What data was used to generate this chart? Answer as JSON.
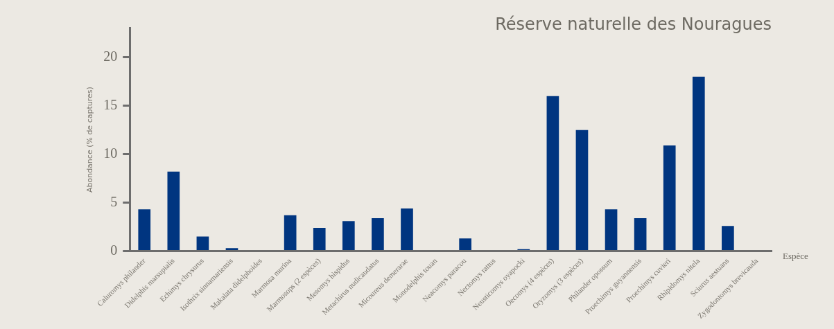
{
  "chart_data": {
    "type": "bar",
    "title": "Réserve naturelle des Nouragues",
    "xlabel": "Espèce",
    "ylabel": "Abondance (% de captures)",
    "categories": [
      "Caluromys philander",
      "Didelphis marsupialis",
      "Echimys chrysurus",
      "Isothrix sinnamariensis",
      "Makalata didelphoides",
      "Marmosa murina",
      "Marmosops (2 espèces)",
      "Mesomys hispidus",
      "Metachirus nudicaudatus",
      "Micoureus demerarae",
      "Monodelphis touan",
      "Neacomys paracou",
      "Nectomys rattus",
      "Neusticomys oyapocki",
      "Oecomys (4 espèces)",
      "Oryzomys (3 espèces)",
      "Philander opossum",
      "Proechimys guyannensis",
      "Proechimys cuvieri",
      "Rhipidomys nitela",
      "Sciurus aestuans",
      "Zygodontomys brevicauda"
    ],
    "values": [
      4.3,
      8.2,
      1.5,
      0.3,
      0,
      3.7,
      2.4,
      3.1,
      3.4,
      4.4,
      0,
      1.3,
      0,
      0.2,
      16,
      12.5,
      4.3,
      3.4,
      10.9,
      18,
      2.6,
      0
    ],
    "color": "#003580",
    "ylim": [
      0,
      23
    ],
    "yticks": [
      0,
      5,
      10,
      15,
      20
    ],
    "grid": false,
    "legend": false
  }
}
